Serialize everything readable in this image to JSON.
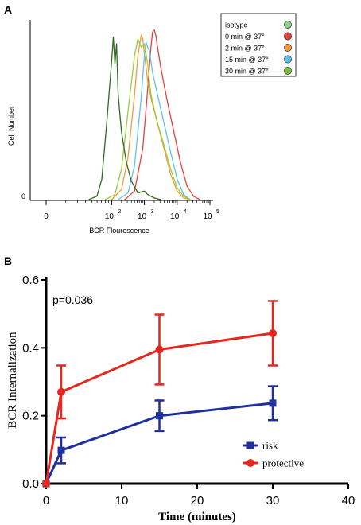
{
  "chart_data": [
    {
      "panel_label": "A",
      "type": "line",
      "xlabel": "BCR Flourescence",
      "ylabel": "Cell Number",
      "y_tick_label": "0",
      "x_ticks": [
        {
          "base": "0",
          "exp": "",
          "value": 0
        },
        {
          "base": "10",
          "exp": "2",
          "value": 2
        },
        {
          "base": "10",
          "exp": "3",
          "value": 3
        },
        {
          "base": "10",
          "exp": "4",
          "value": 4
        },
        {
          "base": "10",
          "exp": "5",
          "value": 5
        }
      ],
      "legend": [
        {
          "name": "isotype",
          "color": "#8ed18e"
        },
        {
          "name": "0 min @ 37°",
          "color": "#e8413a"
        },
        {
          "name": "2 min @ 37°",
          "color": "#f59a3a"
        },
        {
          "name": "15 min @ 37°",
          "color": "#5fc3e8"
        },
        {
          "name": "30 min @ 37°",
          "color": "#7cbc3c"
        }
      ],
      "legend_position": "top-right",
      "series": [
        {
          "name": "isotype",
          "color": "#2f6b1f",
          "x": [
            1.3,
            1.55,
            1.7,
            1.85,
            2.0,
            2.05,
            2.1,
            2.15,
            2.2,
            2.3,
            2.45,
            2.6,
            2.8,
            3.0,
            3.1,
            3.3,
            3.5
          ],
          "y": [
            0,
            0.02,
            0.12,
            0.45,
            0.82,
            0.96,
            0.8,
            0.92,
            0.62,
            0.4,
            0.22,
            0.11,
            0.04,
            0.05,
            0.03,
            0.01,
            0
          ]
        },
        {
          "name": "0 min @ 37°",
          "color": "#e8413a",
          "x": [
            2.4,
            2.7,
            2.95,
            3.1,
            3.2,
            3.25,
            3.3,
            3.35,
            3.4,
            3.5,
            3.7,
            3.9,
            4.1,
            4.3,
            4.5,
            4.7
          ],
          "y": [
            0,
            0.05,
            0.3,
            0.65,
            0.9,
            0.99,
            1.0,
            0.97,
            0.9,
            0.78,
            0.58,
            0.4,
            0.22,
            0.08,
            0.02,
            0
          ]
        },
        {
          "name": "2 min @ 37°",
          "color": "#f59a3a",
          "x": [
            2.0,
            2.3,
            2.5,
            2.7,
            2.8,
            2.9,
            2.95,
            3.0,
            3.1,
            3.2,
            3.4,
            3.6,
            3.8,
            4.0,
            4.2,
            4.4
          ],
          "y": [
            0,
            0.06,
            0.25,
            0.62,
            0.85,
            0.97,
            0.95,
            0.86,
            0.7,
            0.6,
            0.45,
            0.3,
            0.15,
            0.05,
            0.01,
            0
          ]
        },
        {
          "name": "15 min @ 37°",
          "color": "#5fc3e8",
          "x": [
            2.2,
            2.5,
            2.7,
            2.9,
            3.0,
            3.05,
            3.1,
            3.15,
            3.25,
            3.4,
            3.6,
            3.8,
            4.0,
            4.2,
            4.4
          ],
          "y": [
            0,
            0.04,
            0.2,
            0.6,
            0.85,
            0.93,
            0.9,
            0.88,
            0.75,
            0.62,
            0.45,
            0.28,
            0.12,
            0.03,
            0
          ]
        },
        {
          "name": "30 min @ 37°",
          "color": "#9ccc3c",
          "x": [
            1.8,
            2.1,
            2.3,
            2.5,
            2.7,
            2.8,
            2.9,
            3.0,
            3.1,
            3.2,
            3.4,
            3.6,
            3.8,
            4.0,
            4.2,
            4.4
          ],
          "y": [
            0,
            0.03,
            0.18,
            0.52,
            0.85,
            0.95,
            0.9,
            0.92,
            0.8,
            0.62,
            0.45,
            0.32,
            0.18,
            0.07,
            0.02,
            0
          ]
        }
      ]
    },
    {
      "panel_label": "B",
      "type": "line",
      "xlabel": "Time (minutes)",
      "ylabel": "BCR Internalization",
      "xlim": [
        0,
        40
      ],
      "ylim": [
        0,
        0.6
      ],
      "x_ticks": [
        0,
        10,
        20,
        30,
        40
      ],
      "y_ticks": [
        "0.0",
        "0.2",
        "0.4",
        "0.6"
      ],
      "annotation": "p=0.036",
      "legend_position": "bottom-right",
      "series": [
        {
          "name": "risk",
          "color": "#1f2f9e",
          "marker": "square",
          "x": [
            0,
            2,
            15,
            30
          ],
          "y": [
            0,
            0.098,
            0.2,
            0.237
          ],
          "err": [
            0,
            0.038,
            0.045,
            0.05
          ]
        },
        {
          "name": "protective",
          "color": "#e4281f",
          "marker": "circle",
          "x": [
            0,
            2,
            15,
            30
          ],
          "y": [
            0,
            0.27,
            0.395,
            0.443
          ],
          "err": [
            0,
            0.078,
            0.103,
            0.095
          ]
        }
      ]
    }
  ]
}
